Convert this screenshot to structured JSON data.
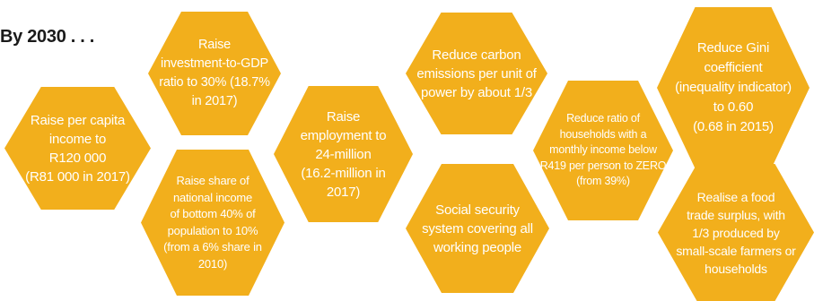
{
  "heading": "By 2030 . . .",
  "colors": {
    "hexagon_fill": "#f2af1c",
    "hexagon_text": "#ffffff",
    "heading_text": "#1a1a1a"
  },
  "goals": [
    {
      "text": "Raise per capita\nincome to\nR120 000\n(R81 000 in 2017)"
    },
    {
      "text": "Raise\ninvestment-to-GDP\nratio to 30% (18.7%\nin 2017)"
    },
    {
      "text": "Raise share of\nnational income\nof bottom 40% of\npopulation to 10%\n(from a 6% share in\n2010)"
    },
    {
      "text": "Raise\nemployment to\n24-million\n(16.2-million in\n2017)"
    },
    {
      "text": "Reduce carbon\nemissions per unit of\npower by about 1/3"
    },
    {
      "text": "Social security\nsystem covering all\nworking people"
    },
    {
      "text": "Reduce ratio of\nhouseholds with a\nmonthly income below\nR419 per person to ZERO\n(from 39%)"
    },
    {
      "text": "Reduce Gini\ncoefficient\n(inequality indicator)\nto 0.60\n(0.68 in 2015)"
    },
    {
      "text": "Realise a food\ntrade surplus, with\n1/3 produced  by\nsmall-scale farmers or\nhouseholds"
    }
  ]
}
